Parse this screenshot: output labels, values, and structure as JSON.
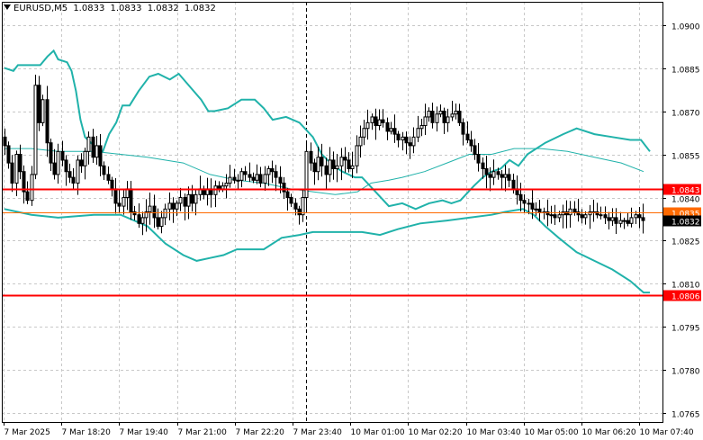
{
  "header": {
    "symbol": "EURUSD,M5",
    "open": "1.0833",
    "high": "1.0833",
    "low": "1.0832",
    "close": "1.0832"
  },
  "colors": {
    "background": "#ffffff",
    "grid": "#c8c8c8",
    "candle": "#000000",
    "bollinger_outer": "#20b2aa",
    "bollinger_mid": "#20b2aa",
    "level": "#ff0000",
    "level_thin": "#ff6a00",
    "price_tag_current": "#000000"
  },
  "chart_data": {
    "type": "candlestick",
    "symbol": "EURUSD",
    "timeframe": "M5",
    "ylim": [
      1.0762,
      1.0908
    ],
    "yticks": [
      "1.0900",
      "1.0885",
      "1.0870",
      "1.0855",
      "1.0840",
      "1.0825",
      "1.0810",
      "1.0795",
      "1.0780",
      "1.0765"
    ],
    "ytick_values": [
      1.09,
      1.0885,
      1.087,
      1.0855,
      1.084,
      1.0825,
      1.081,
      1.0795,
      1.078,
      1.0765
    ],
    "xticks": [
      "7 Mar 2025",
      "7 Mar 18:20",
      "7 Mar 19:40",
      "7 Mar 21:00",
      "7 Mar 22:20",
      "7 Mar 23:40",
      "10 Mar 01:00",
      "10 Mar 02:20",
      "10 Mar 03:40",
      "10 Mar 05:00",
      "10 Mar 06:20",
      "10 Mar 07:40"
    ],
    "grid": true,
    "session_separator_after_label": "7 Mar 23:40",
    "close": [
      1.0858,
      1.0852,
      1.0845,
      1.0855,
      1.0849,
      1.0842,
      1.0839,
      1.0848,
      1.0879,
      1.0866,
      1.0874,
      1.0859,
      1.0852,
      1.0848,
      1.0856,
      1.0853,
      1.0849,
      1.0847,
      1.0845,
      1.0853,
      1.0851,
      1.0856,
      1.0861,
      1.0854,
      1.0858,
      1.0851,
      1.0848,
      1.0846,
      1.0843,
      1.0838,
      1.0837,
      1.084,
      1.0843,
      1.0835,
      1.0834,
      1.0831,
      1.0833,
      1.0835,
      1.0837,
      1.0833,
      1.083,
      1.0833,
      1.0836,
      1.0838,
      1.0836,
      1.0838,
      1.084,
      1.0837,
      1.0841,
      1.0838,
      1.0841,
      1.0843,
      1.0841,
      1.0843,
      1.0841,
      1.0844,
      1.0843,
      1.0844,
      1.0845,
      1.0847,
      1.0846,
      1.0846,
      1.0849,
      1.0848,
      1.0847,
      1.0846,
      1.0848,
      1.0845,
      1.0848,
      1.085,
      1.0849,
      1.0847,
      1.0845,
      1.0842,
      1.084,
      1.0838,
      1.0836,
      1.0834,
      1.084,
      1.0856,
      1.0852,
      1.0849,
      1.0854,
      1.0851,
      1.0848,
      1.0853,
      1.085,
      1.0851,
      1.0854,
      1.0853,
      1.085,
      1.0851,
      1.0858,
      1.0861,
      1.0864,
      1.0866,
      1.0868,
      1.0865,
      1.0867,
      1.0866,
      1.0863,
      1.0864,
      1.0862,
      1.086,
      1.0861,
      1.0859,
      1.0858,
      1.0861,
      1.0864,
      1.0865,
      1.0868,
      1.087,
      1.0866,
      1.0869,
      1.087,
      1.0866,
      1.0868,
      1.0869,
      1.087,
      1.0866,
      1.0862,
      1.086,
      1.0858,
      1.0855,
      1.0852,
      1.085,
      1.0848,
      1.0847,
      1.0849,
      1.0848,
      1.0847,
      1.0848,
      1.0846,
      1.0843,
      1.0841,
      1.0839,
      1.0838,
      1.0838,
      1.0836,
      1.0836,
      1.0835,
      1.0835,
      1.0834,
      1.0834,
      1.0833,
      1.0834,
      1.0835,
      1.0834,
      1.0836,
      1.0835,
      1.0834,
      1.0833,
      1.0834,
      1.0835,
      1.0835,
      1.0834,
      1.0834,
      1.0833,
      1.0832,
      1.0833,
      1.0831,
      1.0832,
      1.0832,
      1.0831,
      1.0833,
      1.0834,
      1.0833,
      1.0832
    ],
    "bollinger_upper_anchors": [
      [
        0,
        1.0885
      ],
      [
        10,
        1.0884
      ],
      [
        15,
        1.0886
      ],
      [
        40,
        1.0886
      ],
      [
        48,
        1.0889
      ],
      [
        55,
        1.0891
      ],
      [
        60,
        1.0888
      ],
      [
        70,
        1.0887
      ],
      [
        75,
        1.0884
      ],
      [
        80,
        1.0877
      ],
      [
        85,
        1.0867
      ],
      [
        90,
        1.0861
      ],
      [
        100,
        1.0858
      ],
      [
        110,
        1.0856
      ],
      [
        117,
        1.0862
      ],
      [
        125,
        1.0866
      ],
      [
        132,
        1.0872
      ],
      [
        140,
        1.0872
      ],
      [
        150,
        1.0877
      ],
      [
        162,
        1.0882
      ],
      [
        172,
        1.0883
      ],
      [
        185,
        1.0881
      ],
      [
        195,
        1.0883
      ],
      [
        220,
        1.0874
      ],
      [
        228,
        1.087
      ],
      [
        235,
        1.087
      ],
      [
        250,
        1.0871
      ],
      [
        265,
        1.0874
      ],
      [
        280,
        1.0874
      ],
      [
        290,
        1.0871
      ],
      [
        300,
        1.0867
      ],
      [
        315,
        1.0868
      ],
      [
        330,
        1.0866
      ],
      [
        345,
        1.0861
      ],
      [
        355,
        1.0855
      ],
      [
        368,
        1.0851
      ],
      [
        378,
        1.0849
      ],
      [
        392,
        1.0847
      ],
      [
        400,
        1.0847
      ],
      [
        415,
        1.0842
      ],
      [
        430,
        1.0837
      ],
      [
        445,
        1.0838
      ],
      [
        460,
        1.0836
      ],
      [
        475,
        1.0838
      ],
      [
        490,
        1.0839
      ],
      [
        500,
        1.0838
      ],
      [
        510,
        1.0839
      ],
      [
        525,
        1.0844
      ],
      [
        535,
        1.0847
      ],
      [
        545,
        1.0849
      ],
      [
        555,
        1.085
      ],
      [
        565,
        1.0853
      ],
      [
        575,
        1.0851
      ],
      [
        585,
        1.0855
      ],
      [
        605,
        1.0859
      ],
      [
        625,
        1.0862
      ],
      [
        640,
        1.0864
      ],
      [
        660,
        1.0862
      ],
      [
        680,
        1.0861
      ],
      [
        700,
        1.086
      ],
      [
        712,
        1.086
      ],
      [
        722,
        1.0856
      ]
    ],
    "bollinger_middle_anchors": [
      [
        0,
        1.0857
      ],
      [
        30,
        1.0857
      ],
      [
        60,
        1.0856
      ],
      [
        100,
        1.0856
      ],
      [
        130,
        1.0855
      ],
      [
        160,
        1.0854
      ],
      [
        200,
        1.0852
      ],
      [
        230,
        1.0848
      ],
      [
        260,
        1.0846
      ],
      [
        290,
        1.0845
      ],
      [
        320,
        1.0843
      ],
      [
        345,
        1.0842
      ],
      [
        370,
        1.0841
      ],
      [
        395,
        1.0842
      ],
      [
        410,
        1.0845
      ],
      [
        430,
        1.0846
      ],
      [
        445,
        1.0847
      ],
      [
        470,
        1.0849
      ],
      [
        495,
        1.0852
      ],
      [
        520,
        1.0855
      ],
      [
        545,
        1.0855
      ],
      [
        570,
        1.0857
      ],
      [
        600,
        1.0857
      ],
      [
        630,
        1.0856
      ],
      [
        660,
        1.0854
      ],
      [
        690,
        1.0852
      ],
      [
        715,
        1.0849
      ]
    ],
    "bollinger_lower_anchors": [
      [
        0,
        1.0836
      ],
      [
        30,
        1.0834
      ],
      [
        60,
        1.0833
      ],
      [
        100,
        1.0834
      ],
      [
        130,
        1.0834
      ],
      [
        160,
        1.083
      ],
      [
        180,
        1.0824
      ],
      [
        200,
        1.082
      ],
      [
        215,
        1.0818
      ],
      [
        230,
        1.0819
      ],
      [
        245,
        1.082
      ],
      [
        260,
        1.0822
      ],
      [
        290,
        1.0822
      ],
      [
        310,
        1.0826
      ],
      [
        330,
        1.0827
      ],
      [
        345,
        1.0828
      ],
      [
        360,
        1.0828
      ],
      [
        400,
        1.0828
      ],
      [
        420,
        1.0827
      ],
      [
        440,
        1.0829
      ],
      [
        465,
        1.0831
      ],
      [
        495,
        1.0832
      ],
      [
        520,
        1.0833
      ],
      [
        545,
        1.0834
      ],
      [
        560,
        1.0835
      ],
      [
        580,
        1.0836
      ],
      [
        592,
        1.0834
      ],
      [
        605,
        1.083
      ],
      [
        620,
        1.0826
      ],
      [
        640,
        1.0821
      ],
      [
        660,
        1.0818
      ],
      [
        680,
        1.0815
      ],
      [
        700,
        1.0811
      ],
      [
        715,
        1.0807
      ],
      [
        722,
        1.0807
      ]
    ],
    "levels": [
      {
        "price": "1.0843",
        "value": 1.0843,
        "style": "thick"
      },
      {
        "price": "1.0835",
        "value": 1.0835,
        "style": "thin"
      },
      {
        "price": "1.0806",
        "value": 1.0806,
        "style": "thick"
      }
    ],
    "current_price": {
      "price": "1.0832",
      "value": 1.0832
    }
  }
}
